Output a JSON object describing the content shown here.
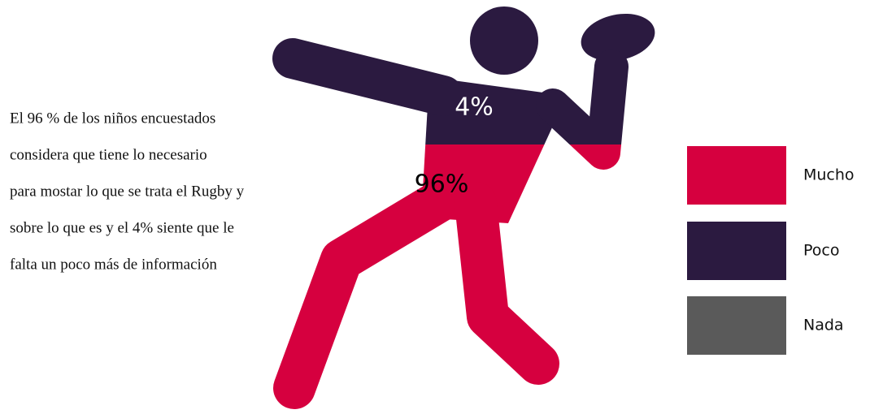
{
  "chart_data": {
    "type": "pictogram",
    "annotation": [
      "El 96 % de los niños encuestados",
      "considera que tiene lo necesario",
      "para mostar lo que se trata el Rugby y",
      "sobre lo que es y el 4% siente que le",
      "falta un poco más de información"
    ],
    "categories": [
      "Mucho",
      "Poco",
      "Nada"
    ],
    "values": [
      96,
      4,
      0
    ],
    "value_labels": [
      "96%",
      "4%",
      null
    ],
    "colors": [
      "#d6003f",
      "#2b1a40",
      "#5a5a5a"
    ],
    "legend": "right"
  }
}
